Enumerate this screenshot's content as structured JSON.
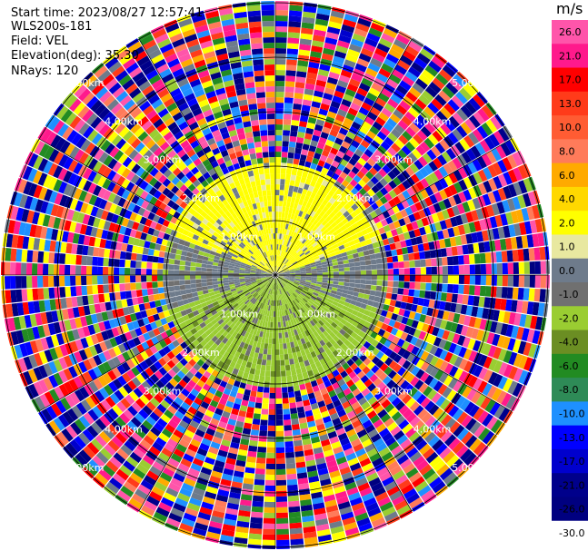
{
  "header": {
    "start_time": "Start time: 2023/08/27 12:57:41",
    "site": "WLS200s-181",
    "field": "Field: VEL",
    "elevation": "Elevation(deg): 35.30",
    "nrays": "NRays: 120"
  },
  "rings": [
    {
      "label": "1.00km"
    },
    {
      "label": "2.00km"
    },
    {
      "label": "3.00km"
    },
    {
      "label": "4.00km"
    },
    {
      "label": "5.00km"
    }
  ],
  "colorbar": {
    "unit": "m/s",
    "bins": [
      {
        "label": "26.0",
        "color": "#ff55aa"
      },
      {
        "label": "21.0",
        "color": "#ff1a8c"
      },
      {
        "label": "17.0",
        "color": "#ff0000"
      },
      {
        "label": "13.0",
        "color": "#ff3b1a"
      },
      {
        "label": "10.0",
        "color": "#ff5c33"
      },
      {
        "label": "8.0",
        "color": "#ff7b5a"
      },
      {
        "label": "6.0",
        "color": "#ffaa00"
      },
      {
        "label": "4.0",
        "color": "#ffd800"
      },
      {
        "label": "2.0",
        "color": "#ffff00"
      },
      {
        "label": "1.0",
        "color": "#e8e8a0"
      },
      {
        "label": "0.0",
        "color": "#6e7b8b"
      },
      {
        "label": "-1.0",
        "color": "#707070"
      },
      {
        "label": "-2.0",
        "color": "#9acd32"
      },
      {
        "label": "-4.0",
        "color": "#6b8e23"
      },
      {
        "label": "-6.0",
        "color": "#228b22"
      },
      {
        "label": "-8.0",
        "color": "#2e8b57"
      },
      {
        "label": "-10.0",
        "color": "#1e90ff"
      },
      {
        "label": "-13.0",
        "color": "#0000ff"
      },
      {
        "label": "-17.0",
        "color": "#0000cd"
      },
      {
        "label": "-21.0",
        "color": "#00008b"
      },
      {
        "label": "-26.0",
        "color": "#000080"
      },
      {
        "label": "-30.0",
        "color": "#ffffff"
      }
    ]
  }
}
